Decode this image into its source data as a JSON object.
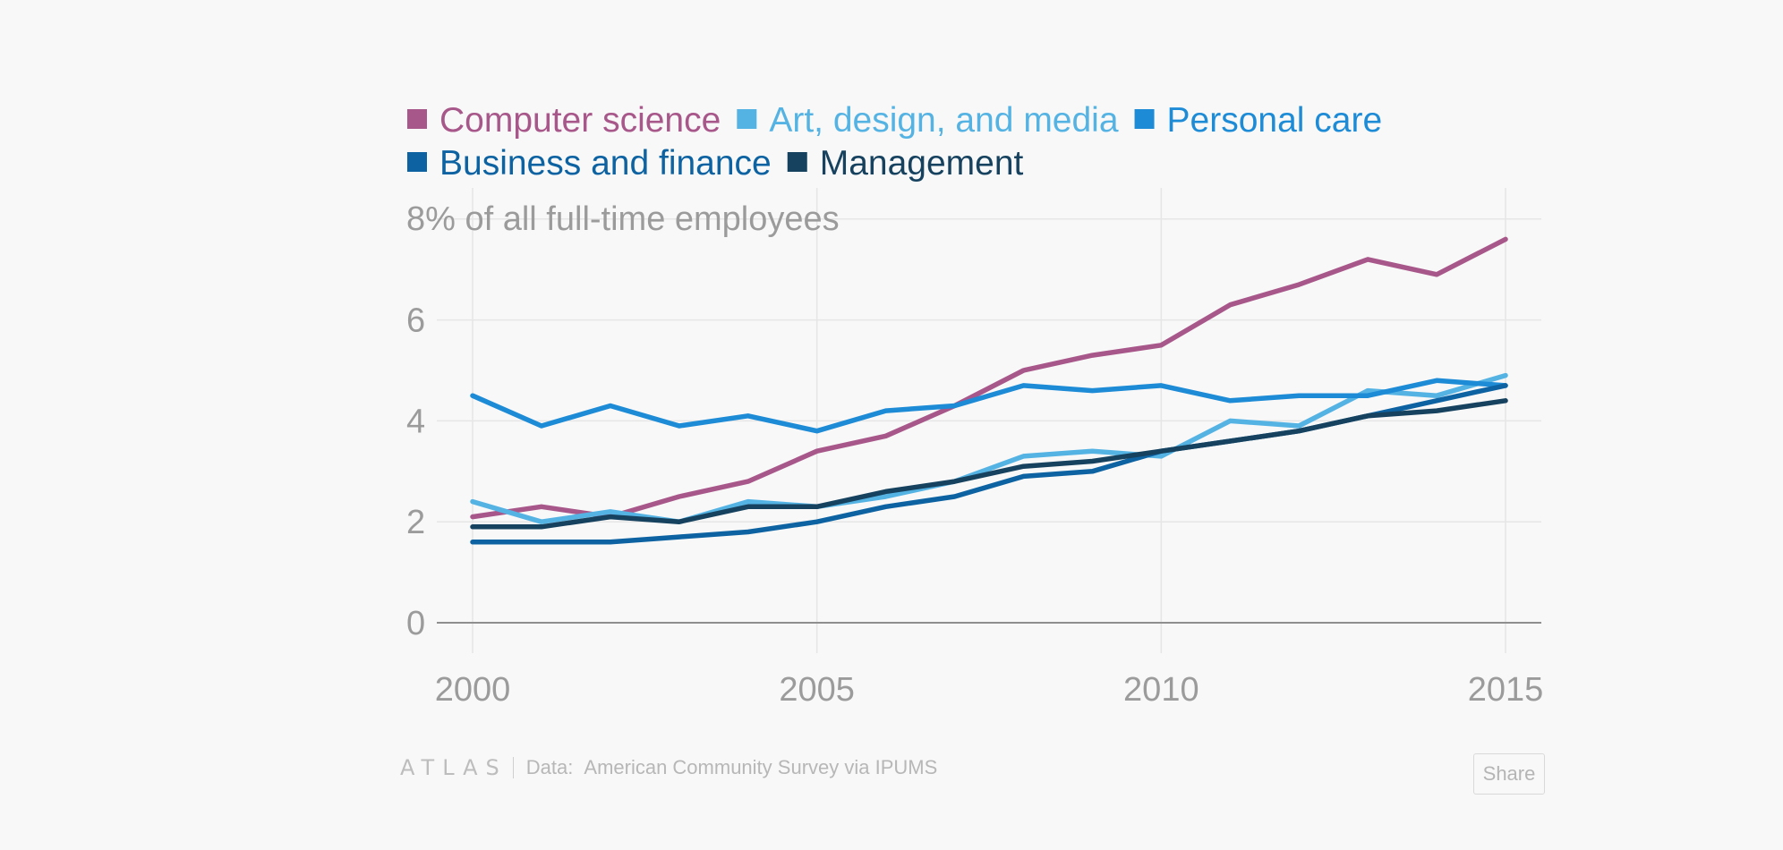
{
  "chart_data": {
    "type": "line",
    "title": "",
    "ylabel_top": "8% of all full-time employees",
    "xlabel": "",
    "x": [
      2000,
      2001,
      2002,
      2003,
      2004,
      2005,
      2006,
      2007,
      2008,
      2009,
      2010,
      2011,
      2012,
      2013,
      2014,
      2015
    ],
    "xlim": [
      1999.5,
      2015.5
    ],
    "ylim": [
      0,
      8
    ],
    "x_ticks": [
      2000,
      2005,
      2010,
      2015
    ],
    "y_ticks": [
      0,
      2,
      4,
      6
    ],
    "grid": true,
    "legend_placement": "top",
    "series": [
      {
        "name": "Computer science",
        "color": "#a8578a",
        "values": [
          2.1,
          2.3,
          2.1,
          2.5,
          2.8,
          3.4,
          3.7,
          4.3,
          5.0,
          5.3,
          5.5,
          6.3,
          6.7,
          7.2,
          6.9,
          7.6
        ]
      },
      {
        "name": "Art, design, and media",
        "color": "#55b3e4",
        "values": [
          2.4,
          2.0,
          2.2,
          2.0,
          2.4,
          2.3,
          2.5,
          2.8,
          3.3,
          3.4,
          3.3,
          4.0,
          3.9,
          4.6,
          4.5,
          4.9
        ]
      },
      {
        "name": "Personal care",
        "color": "#1d8bd6",
        "values": [
          4.5,
          3.9,
          4.3,
          3.9,
          4.1,
          3.8,
          4.2,
          4.3,
          4.7,
          4.6,
          4.7,
          4.4,
          4.5,
          4.5,
          4.8,
          4.7
        ]
      },
      {
        "name": "Business and finance",
        "color": "#0d63a2",
        "values": [
          1.6,
          1.6,
          1.6,
          1.7,
          1.8,
          2.0,
          2.3,
          2.5,
          2.9,
          3.0,
          3.4,
          3.6,
          3.8,
          4.1,
          4.4,
          4.7
        ]
      },
      {
        "name": "Management",
        "color": "#16425f",
        "values": [
          1.9,
          1.9,
          2.1,
          2.0,
          2.3,
          2.3,
          2.6,
          2.8,
          3.1,
          3.2,
          3.4,
          3.6,
          3.8,
          4.1,
          4.2,
          4.4
        ]
      }
    ]
  },
  "footer": {
    "brand": "ATLAS",
    "source_label": "Data:",
    "source_text": "American Community Survey via IPUMS",
    "share_label": "Share"
  }
}
